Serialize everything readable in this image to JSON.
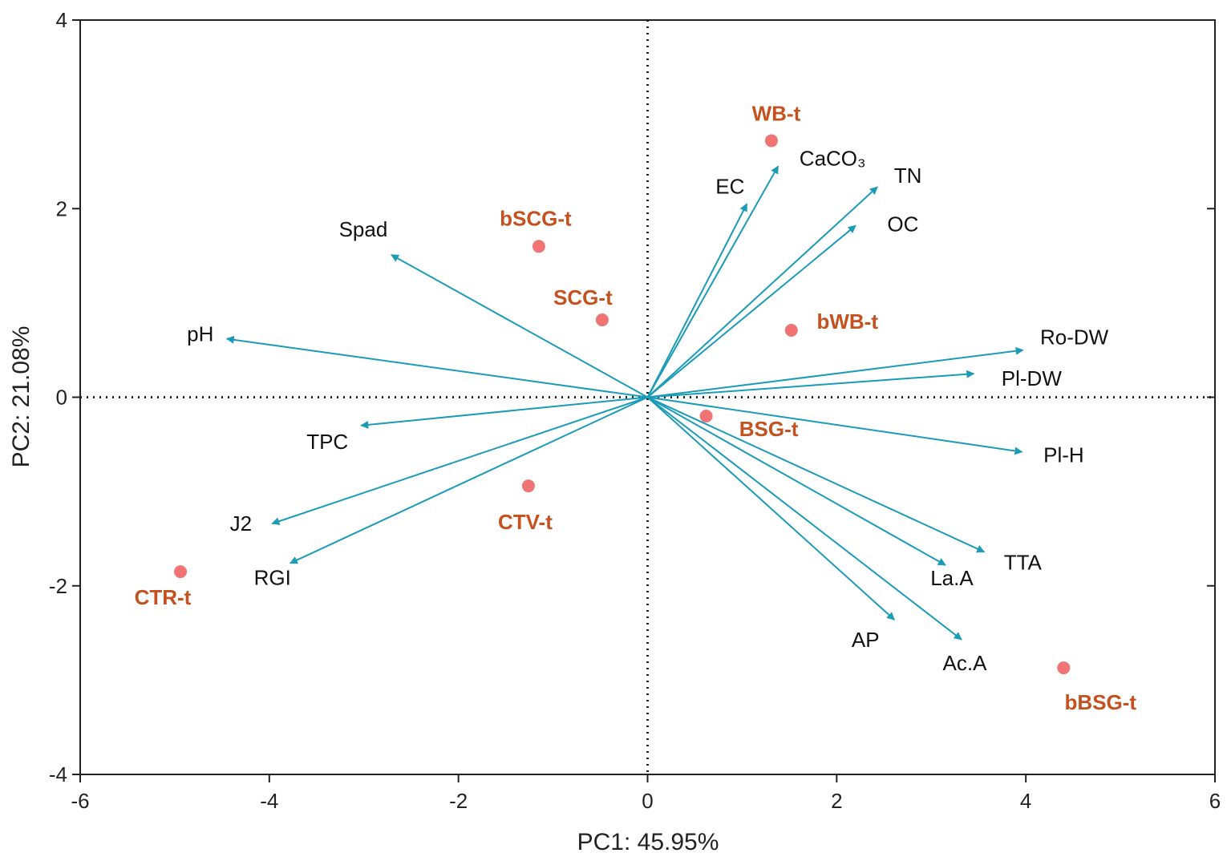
{
  "chart_data": {
    "type": "scatter",
    "subtype": "pca-biplot",
    "xlabel": "PC1: 45.95%",
    "ylabel": "PC2: 21.08%",
    "xlim": [
      -6,
      6
    ],
    "ylim": [
      -4,
      4
    ],
    "xticks": [
      -6,
      -4,
      -2,
      0,
      2,
      4,
      6
    ],
    "yticks": [
      -4,
      -2,
      0,
      2,
      4
    ],
    "grid": false,
    "reference_lines": {
      "x": 0,
      "y": 0,
      "style": "dotted"
    },
    "colors": {
      "arrow": "#1a9bb8",
      "point": "#f07474",
      "point_label": "#c4511e",
      "axis": "#222222"
    },
    "loadings": [
      {
        "name": "Spad",
        "x": -2.71,
        "y": 1.51
      },
      {
        "name": "pH",
        "x": -4.45,
        "y": 0.62
      },
      {
        "name": "TPC",
        "x": -3.03,
        "y": -0.3
      },
      {
        "name": "J2",
        "x": -3.97,
        "y": -1.34
      },
      {
        "name": "RGI",
        "x": -3.78,
        "y": -1.76
      },
      {
        "name": "EC",
        "x": 1.05,
        "y": 2.05
      },
      {
        "name": "CaCO₃",
        "x": 1.38,
        "y": 2.45
      },
      {
        "name": "TN",
        "x": 2.43,
        "y": 2.23
      },
      {
        "name": "OC",
        "x": 2.2,
        "y": 1.82
      },
      {
        "name": "Ro-DW",
        "x": 3.97,
        "y": 0.5
      },
      {
        "name": "Pl-DW",
        "x": 3.45,
        "y": 0.25
      },
      {
        "name": "Pl-H",
        "x": 3.96,
        "y": -0.58
      },
      {
        "name": "TTA",
        "x": 3.56,
        "y": -1.64
      },
      {
        "name": "La.A",
        "x": 3.15,
        "y": -1.78
      },
      {
        "name": "AP",
        "x": 2.61,
        "y": -2.36
      },
      {
        "name": "Ac.A",
        "x": 3.32,
        "y": -2.57
      }
    ],
    "scores": [
      {
        "name": "WB-t",
        "x": 1.31,
        "y": 2.72
      },
      {
        "name": "bSCG-t",
        "x": -1.15,
        "y": 1.6
      },
      {
        "name": "SCG-t",
        "x": -0.48,
        "y": 0.82
      },
      {
        "name": "bWB-t",
        "x": 1.52,
        "y": 0.71
      },
      {
        "name": "BSG-t",
        "x": 0.62,
        "y": -0.2
      },
      {
        "name": "CTV-t",
        "x": -1.26,
        "y": -0.94
      },
      {
        "name": "CTR-t",
        "x": -4.94,
        "y": -1.85
      },
      {
        "name": "bBSG-t",
        "x": 4.4,
        "y": -2.87
      }
    ]
  }
}
